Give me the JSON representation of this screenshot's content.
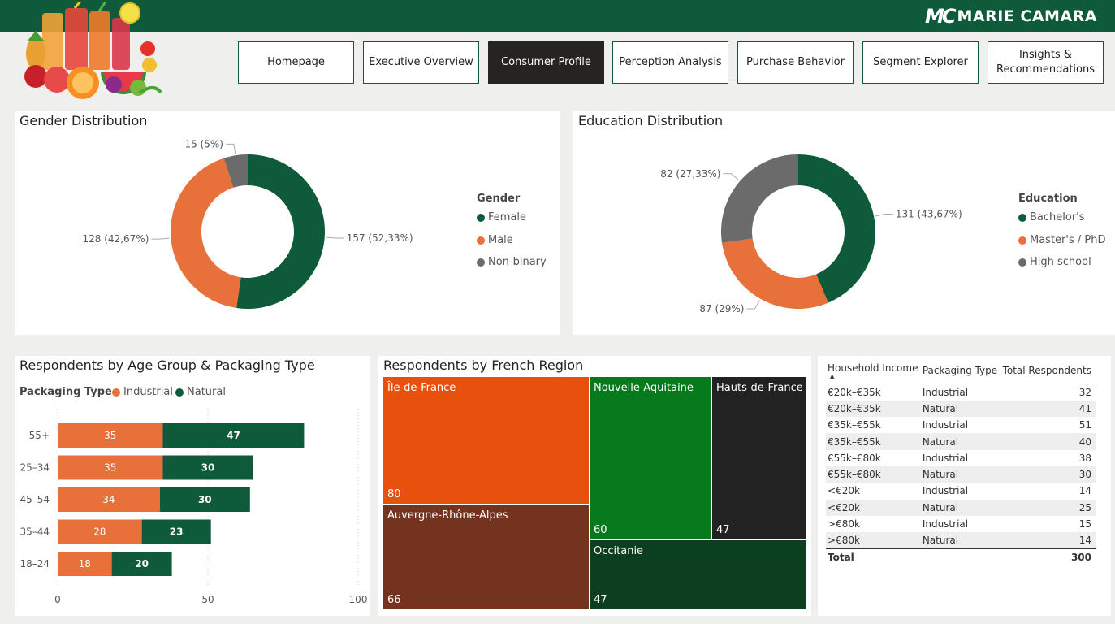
{
  "brand": {
    "mark": "MC",
    "name": "MARIE CAMARA"
  },
  "nav": [
    {
      "label": "Homepage",
      "active": false
    },
    {
      "label": "Executive Overview",
      "active": false
    },
    {
      "label": "Consumer Profile",
      "active": true
    },
    {
      "label": "Perception Analysis",
      "active": false
    },
    {
      "label": "Purchase Behavior",
      "active": false
    },
    {
      "label": "Segment Explorer",
      "active": false
    },
    {
      "label": "Insights & Recommendations",
      "active": false
    }
  ],
  "gender": {
    "title": "Gender Distribution",
    "legend_title": "Gender",
    "legend": [
      "Female",
      "Male",
      "Non-binary"
    ],
    "labels": {
      "female": "157 (52,33%)",
      "male": "128 (42,67%)",
      "nonbinary": "15 (5%)"
    }
  },
  "education": {
    "title": "Education Distribution",
    "legend_title": "Education",
    "legend": [
      "Bachelor's",
      "Master's / PhD",
      "High school"
    ],
    "labels": {
      "bachelor": "131 (43,67%)",
      "master": "87 (29%)",
      "highschool": "82 (27,33%)"
    }
  },
  "age": {
    "title": "Respondents by Age Group & Packaging Type",
    "legend_title": "Packaging Type",
    "legend": [
      "Industrial",
      "Natural"
    ],
    "axis_ticks": [
      "0",
      "50",
      "100"
    ]
  },
  "region": {
    "title": "Respondents by French Region",
    "cells": [
      {
        "name": "Île-de-France",
        "value": "80"
      },
      {
        "name": "Nouvelle-Aquitaine",
        "value": "60"
      },
      {
        "name": "Hauts-de-France",
        "value": "47"
      },
      {
        "name": "Auvergne-Rhône-Alpes",
        "value": "66"
      },
      {
        "name": "Occitanie",
        "value": "47"
      }
    ]
  },
  "income_table": {
    "headers": [
      "Household Income",
      "Packaging Type",
      "Total Respondents"
    ],
    "rows": [
      [
        "€20k–€35k",
        "Industrial",
        "32"
      ],
      [
        "€20k–€35k",
        "Natural",
        "41"
      ],
      [
        "€35k–€55k",
        "Industrial",
        "51"
      ],
      [
        "€35k–€55k",
        "Natural",
        "40"
      ],
      [
        "€55k–€80k",
        "Industrial",
        "38"
      ],
      [
        "€55k–€80k",
        "Natural",
        "30"
      ],
      [
        "<€20k",
        "Industrial",
        "14"
      ],
      [
        "<€20k",
        "Natural",
        "25"
      ],
      [
        ">€80k",
        "Industrial",
        "15"
      ],
      [
        ">€80k",
        "Natural",
        "14"
      ]
    ],
    "total_label": "Total",
    "total_value": "300"
  },
  "colors": {
    "green": "#0e5a3a",
    "orange": "#e8703a",
    "grey": "#6b6b6b",
    "tm_iledefrance": "#e8500e",
    "tm_nouvelle": "#087a1e",
    "tm_hauts": "#222222",
    "tm_auvergne": "#73331e",
    "tm_occitanie": "#0b3f1f"
  },
  "chart_data": [
    {
      "type": "pie",
      "title": "Gender Distribution",
      "categories": [
        "Female",
        "Male",
        "Non-binary"
      ],
      "values": [
        157,
        128,
        15
      ]
    },
    {
      "type": "pie",
      "title": "Education Distribution",
      "categories": [
        "Bachelor's",
        "Master's / PhD",
        "High school"
      ],
      "values": [
        131,
        87,
        82
      ]
    },
    {
      "type": "bar",
      "title": "Respondents by Age Group & Packaging Type",
      "orientation": "horizontal",
      "stacked": true,
      "categories": [
        "55+",
        "25–34",
        "45–54",
        "35–44",
        "18–24"
      ],
      "series": [
        {
          "name": "Industrial",
          "values": [
            35,
            35,
            34,
            28,
            18
          ]
        },
        {
          "name": "Natural",
          "values": [
            47,
            30,
            30,
            23,
            20
          ]
        }
      ],
      "xlim": [
        0,
        100
      ],
      "legend": "top-left",
      "grid": true
    },
    {
      "type": "heatmap",
      "subtype": "treemap",
      "title": "Respondents by French Region",
      "categories": [
        "Île-de-France",
        "Auvergne-Rhône-Alpes",
        "Nouvelle-Aquitaine",
        "Hauts-de-France",
        "Occitanie"
      ],
      "values": [
        80,
        66,
        60,
        47,
        47
      ]
    }
  ]
}
